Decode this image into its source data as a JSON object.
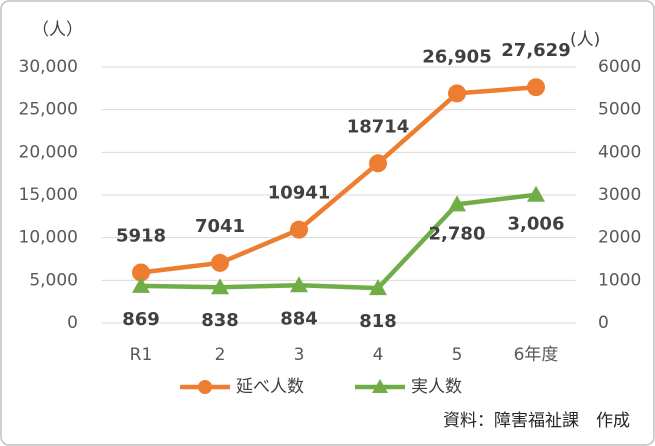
{
  "chart_data": {
    "type": "line",
    "y_unit_label": "（人）",
    "y2_unit_label": "(人)",
    "categories": [
      "R1",
      "2",
      "3",
      "4",
      "5",
      "6年度"
    ],
    "series": [
      {
        "name": "延べ人数",
        "color": "#ed7d31",
        "marker": "circle",
        "values": [
          5918,
          7041,
          10941,
          18714,
          26905,
          27629
        ],
        "value_labels": [
          "5918",
          "7041",
          "10941",
          "18714",
          "26,905",
          "27,629"
        ]
      },
      {
        "name": "実人数",
        "color": "#70ad47",
        "marker": "triangle",
        "axis": "y2",
        "values": [
          869,
          838,
          884,
          818,
          2780,
          3006
        ],
        "value_labels": [
          "869",
          "838",
          "884",
          "818",
          "2,780",
          "3,006"
        ]
      }
    ],
    "ylim": [
      0,
      30000
    ],
    "yticks": [
      0,
      {
        "value": 5000,
        "label": "5,000"
      },
      {
        "value": 10000,
        "label": "10,000"
      },
      {
        "value": 15000,
        "label": "15,000"
      },
      {
        "value": 20000,
        "label": "20,000"
      },
      {
        "value": 25000,
        "label": "25,000"
      },
      {
        "value": 30000,
        "label": "30,000"
      }
    ],
    "y2lim": [
      0,
      6000
    ],
    "y2ticks": [
      0,
      1000,
      2000,
      3000,
      4000,
      5000,
      6000
    ],
    "grid": true,
    "legend": "bottom",
    "source": "資料：障害福祉課　作成"
  }
}
